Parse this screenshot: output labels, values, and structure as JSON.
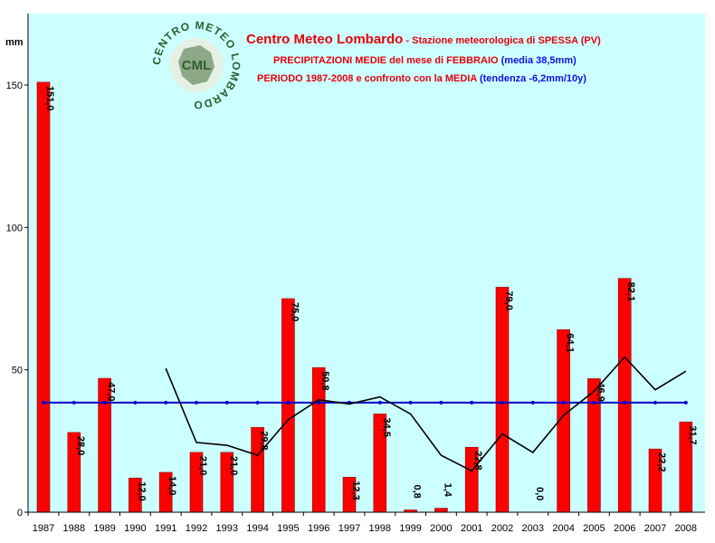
{
  "chart_data": {
    "type": "bar",
    "title": "Centro Meteo Lombardo",
    "title_suffix": " - Stazione meteorologica di SPESSA (PV)",
    "subtitle_line1": "PRECIPITAZIONI MEDIE del mese di FEBBRAIO",
    "subtitle_line1_blue": " (media 38,5mm)",
    "subtitle_line2": "PERIODO 1987-2008 e confronto con la MEDIA",
    "subtitle_line2_blue": "  (tendenza -6,2mm/10y)",
    "ylabel": "mm",
    "ylim": [
      0,
      150
    ],
    "yticks": [
      0,
      50,
      100,
      150
    ],
    "grid": false,
    "categories": [
      "1987",
      "1988",
      "1989",
      "1990",
      "1991",
      "1992",
      "1993",
      "1994",
      "1995",
      "1996",
      "1997",
      "1998",
      "1999",
      "2000",
      "2001",
      "2002",
      "2003",
      "2004",
      "2005",
      "2006",
      "2007",
      "2008"
    ],
    "values": [
      151.0,
      28.0,
      47.0,
      12.0,
      14.0,
      21.0,
      21.0,
      29.8,
      75.0,
      50.8,
      12.3,
      34.5,
      0.8,
      1.4,
      22.8,
      79.0,
      0.0,
      64.1,
      46.9,
      82.1,
      22.2,
      31.7
    ],
    "value_labels": [
      "151,0",
      "28,0",
      "47,0",
      "12,0",
      "14,0",
      "21,0",
      "21,0",
      "29,8",
      "75,0",
      "50,8",
      "12,3",
      "34,5",
      "0,8",
      "1,4",
      "22,8",
      "79,0",
      "0,0",
      "64,1",
      "46,9",
      "82,1",
      "22,2",
      "31,7"
    ],
    "mean": 38.5,
    "moving_average": [
      null,
      null,
      null,
      null,
      50.5,
      24.5,
      23.5,
      20.0,
      32.5,
      39.5,
      38.0,
      40.5,
      34.5,
      20.0,
      14.5,
      27.5,
      21.0,
      34.0,
      42.5,
      54.5,
      43.0,
      49.5
    ],
    "colors": {
      "plot_background": "#ccffff",
      "bar": "#ff0000",
      "bar_outline": "#8b0000",
      "mean_line": "#0000cc",
      "trend_line": "#000000"
    }
  },
  "logo": {
    "initials": "CML",
    "ring_text": "CENTRO METEO LOMBARDO"
  }
}
